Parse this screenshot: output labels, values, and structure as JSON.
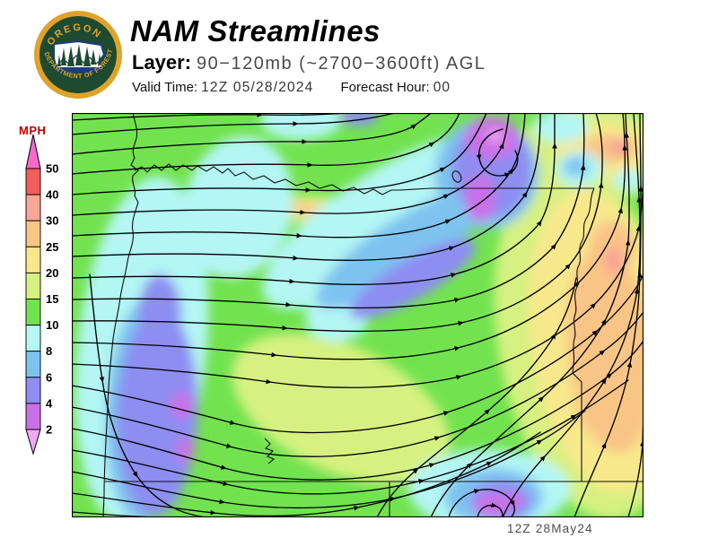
{
  "header": {
    "title": "NAM Streamlines",
    "layer_label": "Layer:",
    "layer_value": "90−120mb (~2700−3600ft) AGL",
    "valid_time_label": "Valid Time:",
    "valid_time_value": "12Z 05/28/2024",
    "forecast_hour_label": "Forecast Hour:",
    "forecast_hour_value": "00"
  },
  "logo": {
    "arc_top_text": "OREGON",
    "arc_bottom_text": "DEPARTMENT OF FORESTRY",
    "ring_color": "#DFA32B",
    "disc_color": "#1E4A2F"
  },
  "legend": {
    "title": "MPH",
    "title_color": "#C00000",
    "boundaries": [
      "50",
      "40",
      "30",
      "25",
      "20",
      "15",
      "10",
      "8",
      "6",
      "4",
      "2"
    ],
    "segments": [
      {
        "range": "40-50",
        "color": "#F25D5D"
      },
      {
        "range": "30-40",
        "color": "#F8A695"
      },
      {
        "range": "25-30",
        "color": "#F9C586"
      },
      {
        "range": "20-25",
        "color": "#FAE78A"
      },
      {
        "range": "15-20",
        "color": "#D6F181"
      },
      {
        "range": "10-15",
        "color": "#72E34F"
      },
      {
        "range": "8-10",
        "color": "#B3F6F4"
      },
      {
        "range": "6-8",
        "color": "#7EC3F0"
      },
      {
        "range": "4-6",
        "color": "#8D8DF2"
      },
      {
        "range": "2-4",
        "color": "#CB6FE8"
      }
    ],
    "above_color": "#F768C8",
    "below_color": "#EFA9EE"
  },
  "map": {
    "timestamp": "12Z 28May24",
    "base_color": "#72E34F",
    "streamline_color": "#000000",
    "features": [
      "oregon-coastline",
      "columbia-river",
      "oregon-washington-border",
      "snake-river",
      "42n-state-border",
      "120w-state-border"
    ]
  }
}
